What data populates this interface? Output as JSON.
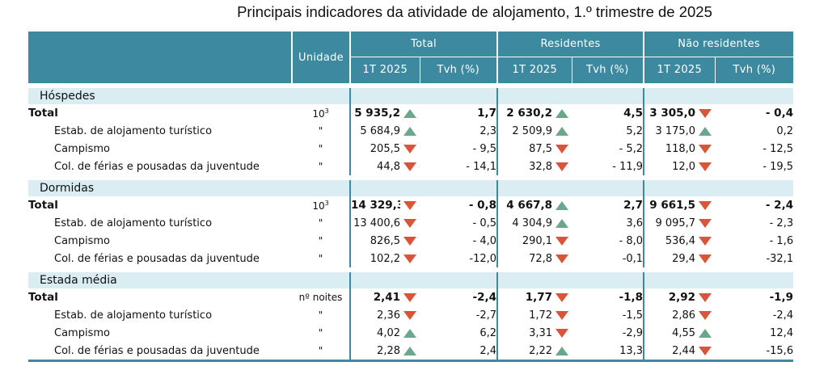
{
  "title": "Principais indicadores da atividade de alojamento, 1.º trimestre de 2025",
  "header": {
    "unit": "Unidade",
    "groups": [
      "Total",
      "Residentes",
      "Não residentes"
    ],
    "sub": [
      "1T 2025",
      "Tvh (%)"
    ]
  },
  "colors": {
    "header_bg": "#3d8aa0",
    "section_bg": "#d9edf2",
    "up": "#6ba88b",
    "down": "#d9553a"
  },
  "sections": [
    {
      "name": "Hóspedes",
      "rows": [
        {
          "label": "Total",
          "unit_base": "10",
          "unit_exp": "3",
          "total": true,
          "vals": [
            [
              "5 935,2",
              "up",
              "1,7"
            ],
            [
              "2 630,2",
              "up",
              "4,5"
            ],
            [
              "3 305,0",
              "down",
              "- 0,4"
            ]
          ]
        },
        {
          "label": "Estab. de alojamento turístico",
          "unit": "\"",
          "vals": [
            [
              "5 684,9",
              "up",
              "2,3"
            ],
            [
              "2 509,9",
              "up",
              "5,2"
            ],
            [
              "3 175,0",
              "up",
              "0,2"
            ]
          ]
        },
        {
          "label": "Campismo",
          "unit": "\"",
          "vals": [
            [
              "205,5",
              "down",
              "- 9,5"
            ],
            [
              "87,5",
              "down",
              "- 5,2"
            ],
            [
              "118,0",
              "down",
              "- 12,5"
            ]
          ]
        },
        {
          "label": "Col. de férias e pousadas da juventude",
          "unit": "\"",
          "vals": [
            [
              "44,8",
              "down",
              "- 14,1"
            ],
            [
              "32,8",
              "down",
              "- 11,9"
            ],
            [
              "12,0",
              "down",
              "- 19,5"
            ]
          ]
        }
      ]
    },
    {
      "name": "Dormidas",
      "rows": [
        {
          "label": "Total",
          "unit_base": "10",
          "unit_exp": "3",
          "total": true,
          "vals": [
            [
              "14 329,3",
              "down",
              "- 0,8"
            ],
            [
              "4 667,8",
              "up",
              "2,7"
            ],
            [
              "9 661,5",
              "down",
              "- 2,4"
            ]
          ]
        },
        {
          "label": "Estab. de alojamento turístico",
          "unit": "\"",
          "vals": [
            [
              "13 400,6",
              "down",
              "- 0,5"
            ],
            [
              "4 304,9",
              "up",
              "3,6"
            ],
            [
              "9 095,7",
              "down",
              "- 2,3"
            ]
          ]
        },
        {
          "label": "Campismo",
          "unit": "\"",
          "vals": [
            [
              "826,5",
              "down",
              "- 4,0"
            ],
            [
              "290,1",
              "down",
              "- 8,0"
            ],
            [
              "536,4",
              "down",
              "- 1,6"
            ]
          ]
        },
        {
          "label": "Col. de férias e pousadas da juventude",
          "unit": "\"",
          "vals": [
            [
              "102,2",
              "down",
              "-12,0"
            ],
            [
              "72,8",
              "down",
              "-0,1"
            ],
            [
              "29,4",
              "down",
              "-32,1"
            ]
          ]
        }
      ]
    },
    {
      "name": "Estada média",
      "rows": [
        {
          "label": "Total",
          "unit": "nº noites",
          "total": true,
          "vals": [
            [
              "2,41",
              "down",
              "-2,4"
            ],
            [
              "1,77",
              "down",
              "-1,8"
            ],
            [
              "2,92",
              "down",
              "-1,9"
            ]
          ]
        },
        {
          "label": "Estab. de alojamento turístico",
          "unit": "\"",
          "vals": [
            [
              "2,36",
              "down",
              "-2,7"
            ],
            [
              "1,72",
              "down",
              "-1,5"
            ],
            [
              "2,86",
              "down",
              "-2,4"
            ]
          ]
        },
        {
          "label": "Campismo",
          "unit": "\"",
          "vals": [
            [
              "4,02",
              "up",
              "6,2"
            ],
            [
              "3,31",
              "down",
              "-2,9"
            ],
            [
              "4,55",
              "up",
              "12,4"
            ]
          ]
        },
        {
          "label": "Col. de férias e pousadas da juventude",
          "unit": "\"",
          "vals": [
            [
              "2,28",
              "up",
              "2,4"
            ],
            [
              "2,22",
              "up",
              "13,3"
            ],
            [
              "2,44",
              "down",
              "-15,6"
            ]
          ]
        }
      ]
    }
  ]
}
